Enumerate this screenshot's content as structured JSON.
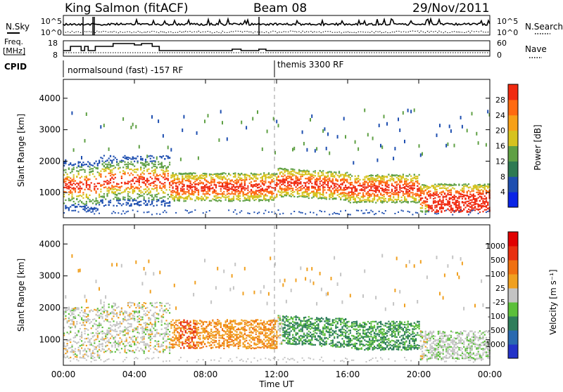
{
  "header": {
    "station": "King Salmon (fitACF)",
    "beam": "Beam 08",
    "date": "29/Nov/2011"
  },
  "left_labels": {
    "nsky": "N.Sky",
    "freq_line1": "Freq.",
    "freq_line2": "[MHz]",
    "cpid": "CPID"
  },
  "right_labels": {
    "nsearch": "N.Search",
    "nave": "Nave"
  },
  "noise_axis": {
    "left_top": "10^5",
    "left_bottom": "10^0",
    "right_top": "10^5",
    "right_bottom": "10^0"
  },
  "freq_axis": {
    "left_top": "18",
    "left_bottom": "8",
    "right_top": "60",
    "right_bottom": "0"
  },
  "cpid": {
    "left": "normalsound (fast) -157 RF",
    "right": "themis 3300 RF"
  },
  "chart_data": [
    {
      "type": "heatmap",
      "name": "power",
      "ylabel": "Slant Range [km]",
      "xlabel": "",
      "xlim_hours": [
        0,
        24
      ],
      "ylim": [
        200,
        4600
      ],
      "yticks": [
        1000,
        2000,
        3000,
        4000
      ],
      "colorbar": {
        "label": "Power [dB]",
        "ticks": [
          "4",
          "8",
          "12",
          "16",
          "20",
          "24",
          "28"
        ],
        "colors": [
          "#0a24e6",
          "#1f4fb0",
          "#2e7a52",
          "#5fa044",
          "#d6c21e",
          "#f7a018",
          "#ff6a10",
          "#f02a10"
        ]
      }
    },
    {
      "type": "heatmap",
      "name": "velocity",
      "ylabel": "Slant Range [km]",
      "xlabel": "Time UT",
      "xlim_hours": [
        0,
        24
      ],
      "ylim": [
        200,
        4600
      ],
      "yticks": [
        1000,
        2000,
        3000,
        4000
      ],
      "xticks": [
        "00:00",
        "04:00",
        "08:00",
        "12:00",
        "16:00",
        "20:00",
        "00:00"
      ],
      "colorbar": {
        "label": "Velocity [m s⁻¹]",
        "ticks": [
          "1000",
          "500",
          "100",
          "25",
          "-25",
          "-100",
          "-500",
          "-1000"
        ],
        "colors": [
          "#2433c8",
          "#2a6ab0",
          "#2e7d5a",
          "#5bbf3a",
          "#c4c4c4",
          "#f0a020",
          "#f07010",
          "#e83010",
          "#e00000"
        ]
      }
    }
  ]
}
